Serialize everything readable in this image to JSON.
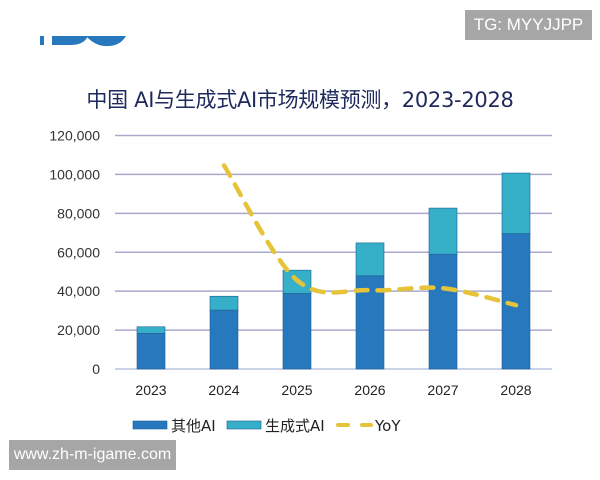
{
  "watermarks": {
    "top_right": "TG: MYYJJPP",
    "bottom_left": "www.zh-m-igame.com"
  },
  "chart_data": {
    "type": "bar",
    "stacked": true,
    "title": "中国 AI与生成式AI市场规模预测，2023-2028",
    "xlabel": "",
    "ylabel": "",
    "ylim": [
      0,
      120000
    ],
    "yticks": [
      "0",
      "20,000",
      "40,000",
      "60,000",
      "80,000",
      "100,000",
      "120,000"
    ],
    "categories": [
      "2023",
      "2024",
      "2025",
      "2026",
      "2027",
      "2028"
    ],
    "series": [
      {
        "name": "其他AI",
        "type": "bar",
        "color": "#2878bd",
        "values": [
          18300,
          30300,
          38800,
          47900,
          59000,
          69600
        ]
      },
      {
        "name": "生成式AI",
        "type": "bar",
        "color": "#36afc8",
        "values": [
          3400,
          7100,
          12000,
          16900,
          23700,
          31100
        ]
      },
      {
        "name": "YoY",
        "type": "line",
        "dashed": true,
        "color": "#e6c43a",
        "values": [
          null,
          104600,
          45600,
          40500,
          41500,
          32800
        ]
      }
    ],
    "grid": true,
    "legend": "bottom"
  }
}
